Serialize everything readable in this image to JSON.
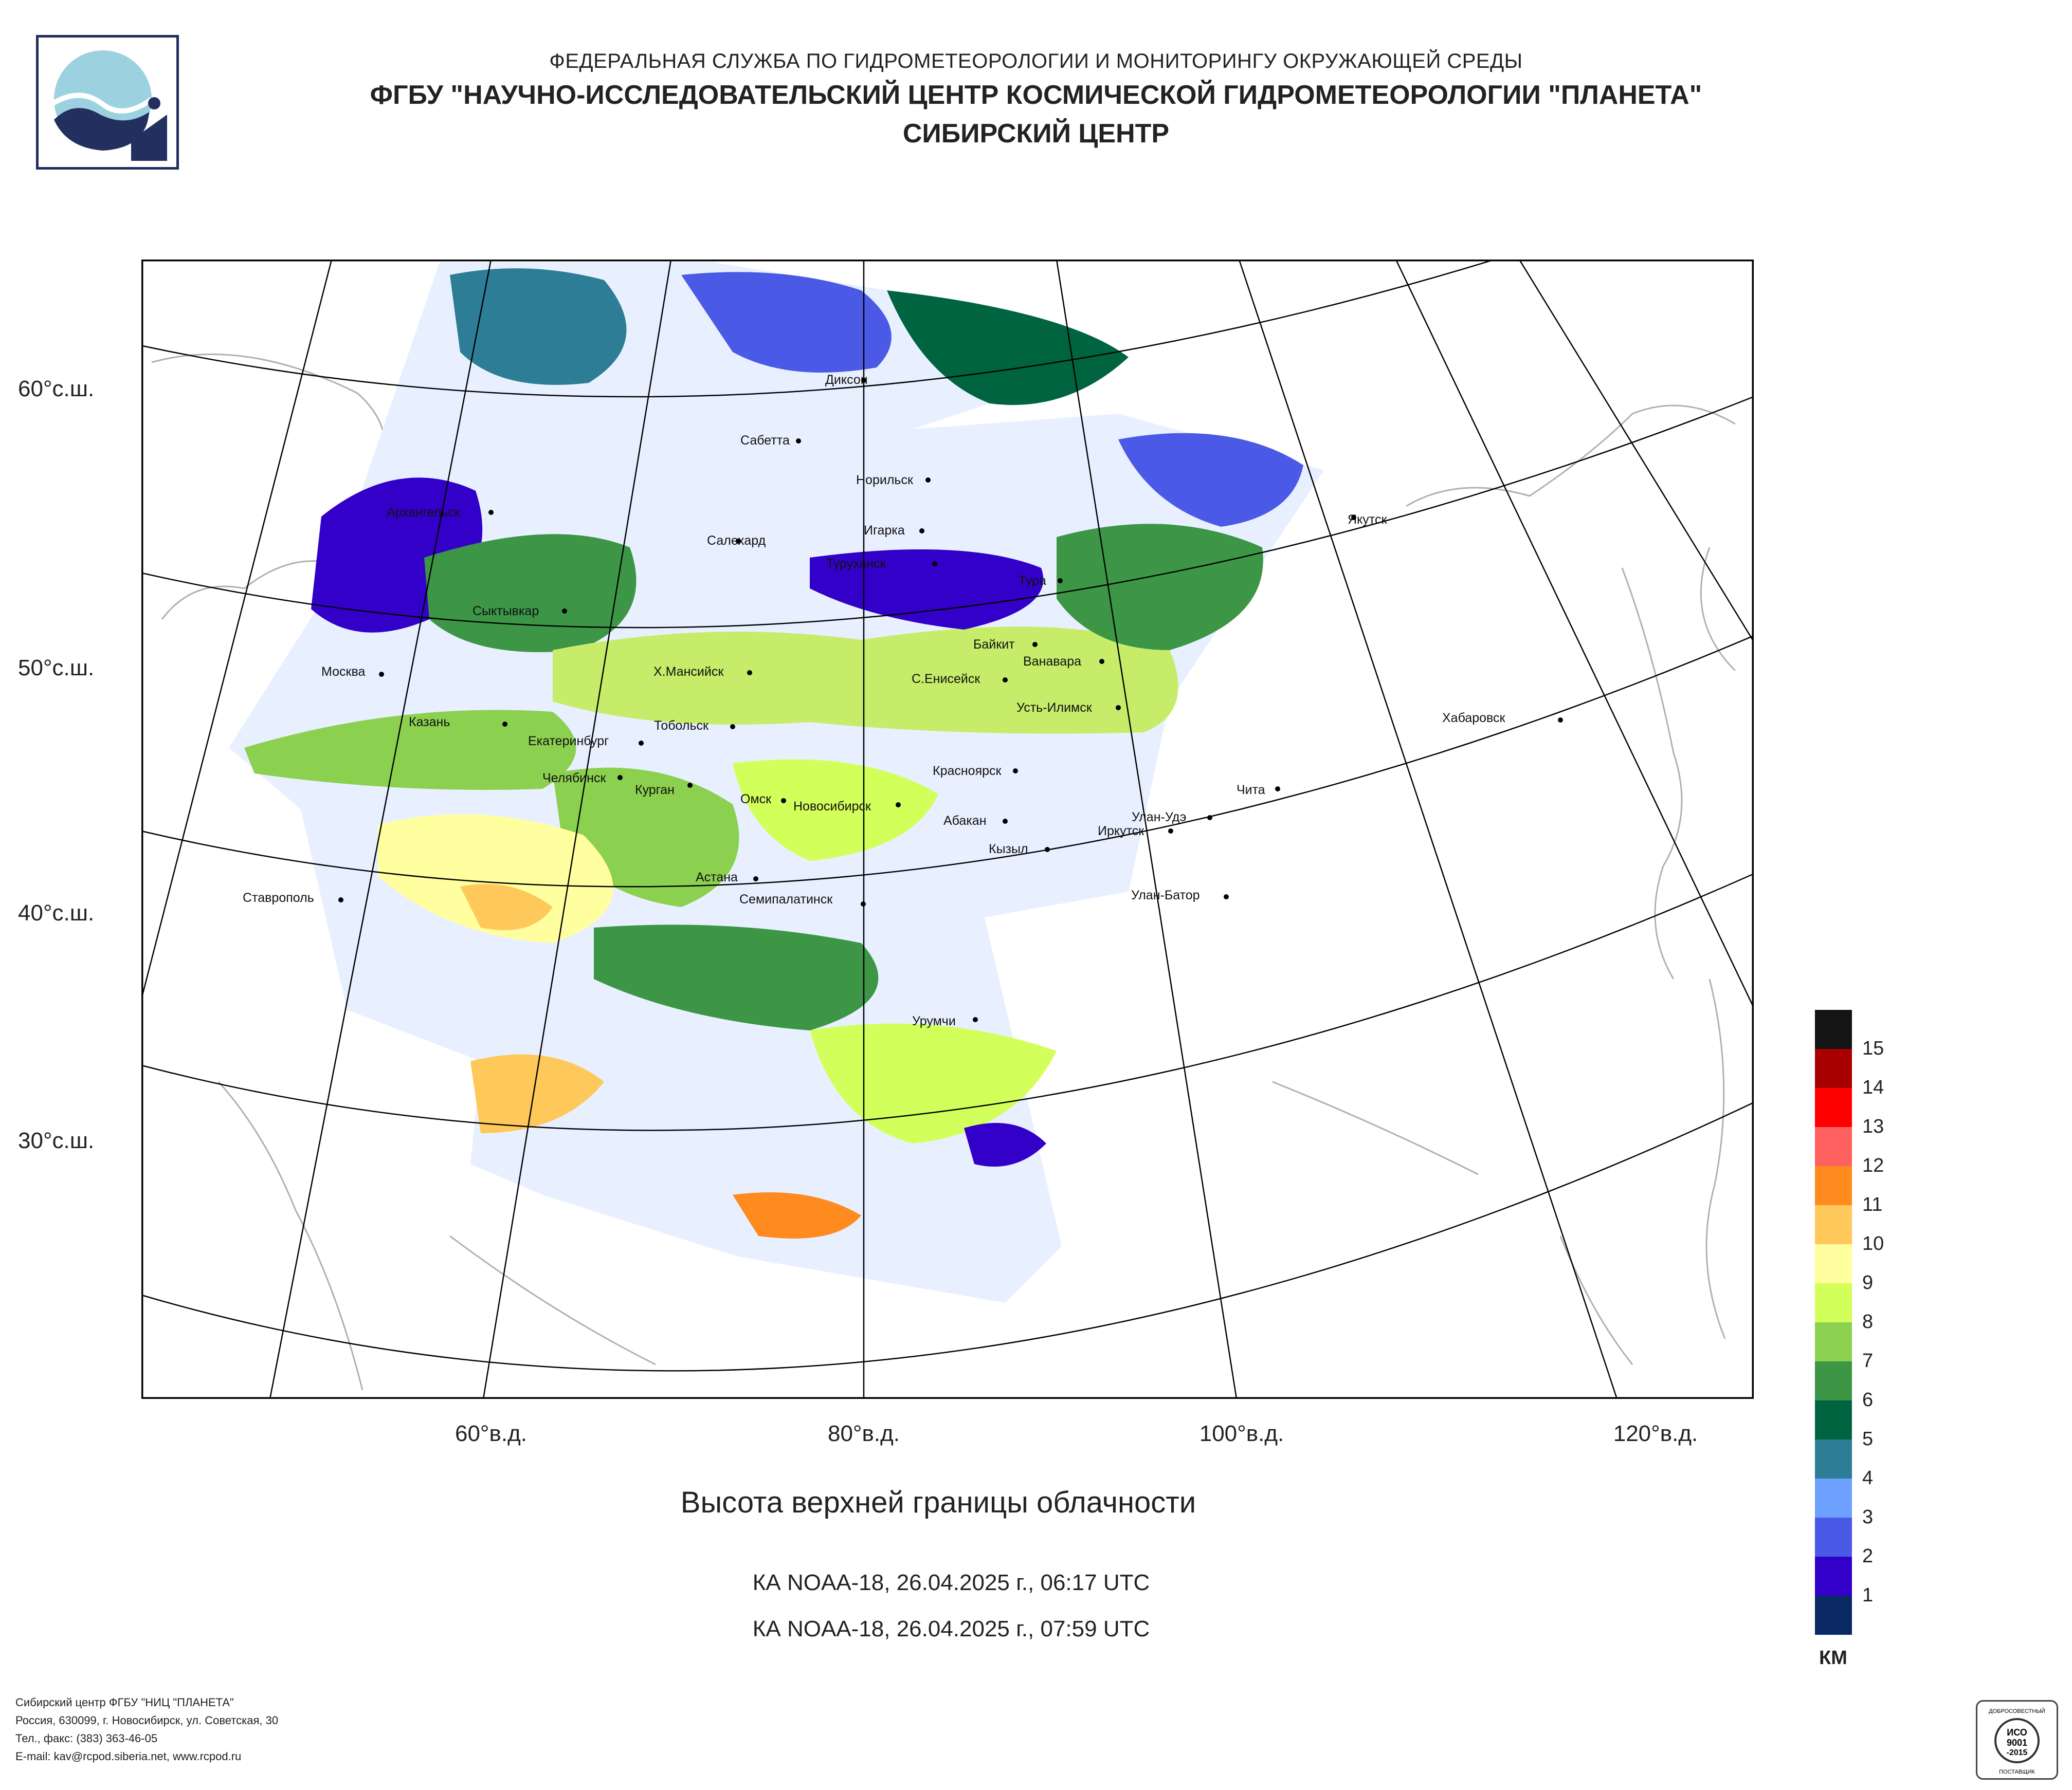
{
  "header": {
    "line1": "ФЕДЕРАЛЬНАЯ СЛУЖБА ПО ГИДРОМЕТЕОРОЛОГИИ И МОНИТОРИНГУ ОКРУЖАЮЩЕЙ СРЕДЫ",
    "line2": "ФГБУ \"НАУЧНО-ИССЛЕДОВАТЕЛЬСКИЙ ЦЕНТР КОСМИЧЕСКОЙ ГИДРОМЕТЕОРОЛОГИИ \"ПЛАНЕТА\"",
    "line3": "СИБИРСКИЙ ЦЕНТР"
  },
  "map": {
    "lat_labels": [
      "60°с.ш.",
      "50°с.ш.",
      "40°с.ш.",
      "30°с.ш."
    ],
    "lon_labels": [
      "60°в.д.",
      "80°в.д.",
      "100°в.д.",
      "120°в.д."
    ],
    "cities": [
      "Диксон",
      "Сабетта",
      "Норильск",
      "Игарка",
      "Архангельск",
      "Салехард",
      "Туруханск",
      "Тура",
      "Якутск",
      "Сыктывкар",
      "Байкит",
      "Ванавара",
      "Москва",
      "Х.Мансийск",
      "С.Енисейск",
      "Усть-Илимск",
      "Казань",
      "Тобольск",
      "Хабаровск",
      "Екатеринбург",
      "Красноярск",
      "Челябинск",
      "Курган",
      "Омск",
      "Новосибирск",
      "Чита",
      "Абакан",
      "Улан-Удэ",
      "Иркутск",
      "Кызыл",
      "Астана",
      "Ставрополь",
      "Семипалатинск",
      "Улан-Батор",
      "Урумчи"
    ],
    "colors": {
      "frame": "#000000",
      "land_outline": "#9a9a9a",
      "graticule": "#000000"
    }
  },
  "title": "Высота верхней границы облачности",
  "subtitle1": "КА NOAA-18, 26.04.2025 г., 06:17 UTC",
  "subtitle2": "КА NOAA-18, 26.04.2025 г., 07:59 UTC",
  "legend": {
    "unit": "КМ",
    "levels": [
      {
        "label": "15",
        "color": "#a80000"
      },
      {
        "label": "14",
        "color": "#ff0000"
      },
      {
        "label": "13",
        "color": "#ff6060"
      },
      {
        "label": "12",
        "color": "#ff8a1e"
      },
      {
        "label": "11",
        "color": "#ffc85a"
      },
      {
        "label": "10",
        "color": "#ffffa0"
      },
      {
        "label": "9",
        "color": "#d2ff5a"
      },
      {
        "label": "8",
        "color": "#8cd050"
      },
      {
        "label": "7",
        "color": "#3c9646"
      },
      {
        "label": "6",
        "color": "#006440"
      },
      {
        "label": "5",
        "color": "#2d7d96"
      },
      {
        "label": "4",
        "color": "#6ea0ff"
      },
      {
        "label": "3",
        "color": "#4b5ae6"
      },
      {
        "label": "2",
        "color": "#3200c8"
      },
      {
        "label": "1",
        "color": "#0a2864"
      }
    ],
    "top_color": "#141414"
  },
  "footer": {
    "line1": "Сибирский центр ФГБУ \"НИЦ \"ПЛАНЕТА\"",
    "line2": "Россия, 630099, г. Новосибирск, ул. Советская, 30",
    "line3": "Тел., факс: (383) 363-46-05",
    "line4": "E-mail: kav@rcpod.siberia.net, www.rcpod.ru"
  },
  "cert": {
    "text1": "ДОБРОСОВЕСТНЫЙ",
    "text2": "ИСО",
    "text3": "9001",
    "text4": "-2015",
    "text5": "ПОСТАВЩИК"
  }
}
